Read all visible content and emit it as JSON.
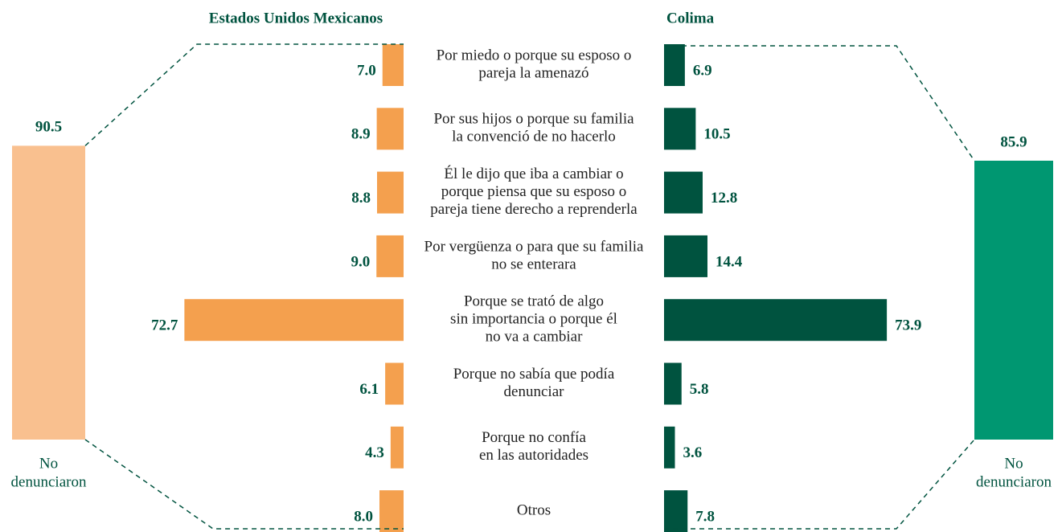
{
  "chart_data": {
    "type": "butterfly",
    "categories": [
      [
        "Por miedo o porque su esposo o",
        "pareja la amenazó"
      ],
      [
        "Por sus hijos o porque su familia",
        "la convenció de no hacerlo"
      ],
      [
        "Él le dijo que iba a cambiar o",
        "porque piensa que su esposo o",
        "pareja tiene derecho a reprenderla"
      ],
      [
        "Por vergüenza o para que su familia",
        "no se enterara"
      ],
      [
        "Porque se trató de algo",
        "sin importancia o porque él",
        "no va a cambiar"
      ],
      [
        "Porque no sabía que podía",
        "denunciar"
      ],
      [
        "Porque no confía",
        "en las autoridades"
      ],
      [
        "Otros"
      ]
    ],
    "series": [
      {
        "name": "Estados Unidos Mexicanos",
        "color": "#f4a04e",
        "values": [
          7.0,
          8.9,
          8.8,
          9.0,
          72.7,
          6.1,
          4.3,
          8.0
        ],
        "value_labels": [
          "7.0",
          "8.9",
          "8.8",
          "9.0",
          "72.7",
          "6.1",
          "4.3",
          "8.0"
        ],
        "total": {
          "value": 90.5,
          "label": [
            "No",
            "denunciaron"
          ],
          "color": "#f9c08f"
        }
      },
      {
        "name": "Colima",
        "color": "#00533f",
        "values": [
          6.9,
          10.5,
          12.8,
          14.4,
          73.9,
          5.8,
          3.6,
          7.8
        ],
        "value_labels": [
          "6.9",
          "10.5",
          "12.8",
          "14.4",
          "73.9",
          "5.8",
          "3.6",
          "7.8"
        ],
        "total": {
          "value": 85.9,
          "label": [
            "No",
            "denunciaron"
          ],
          "color": "#009771"
        }
      }
    ]
  }
}
